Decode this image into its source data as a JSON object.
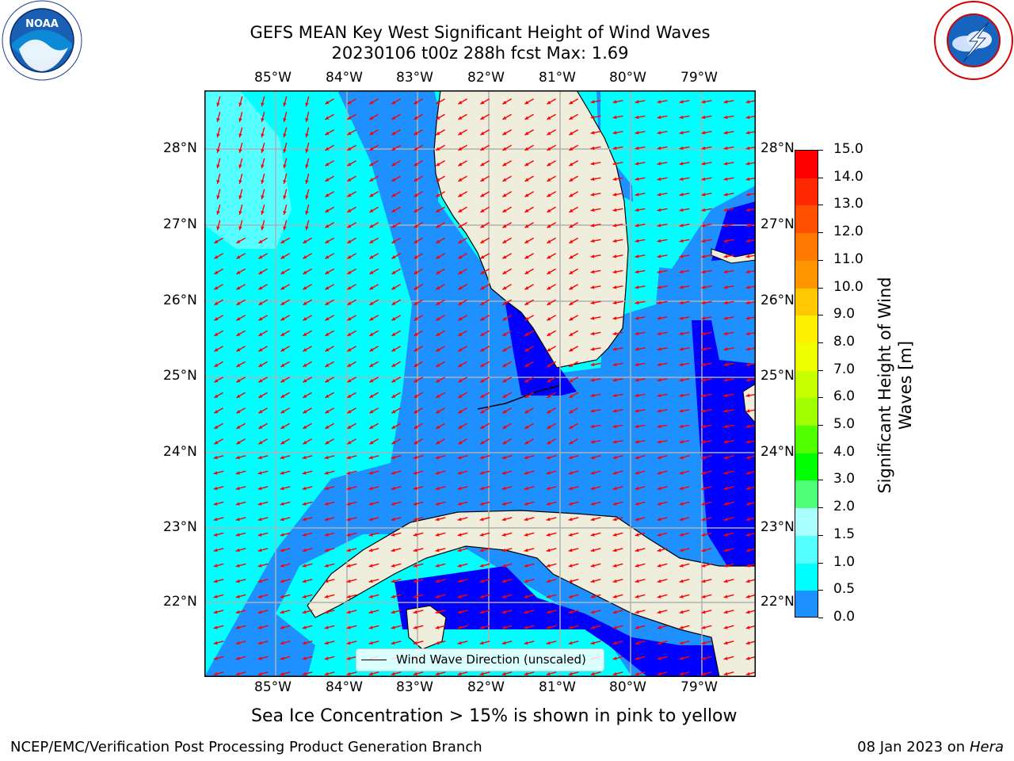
{
  "header": {
    "title_line1": "GEFS MEAN Key West Significant Height of Wind Waves",
    "title_line2": "20230106 t00z 288h fcst   Max: 1.69"
  },
  "logos": {
    "left": {
      "icon": "noaa-logo",
      "text": "NOAA",
      "ring_text": "NATIONAL OCEANIC AND ATMOSPHERIC ADMINISTRATION · U.S. DEPARTMENT OF COMMERCE"
    },
    "right": {
      "icon": "nws-logo",
      "ring_text": "NATIONAL WEATHER SERVICE"
    }
  },
  "map": {
    "lon_ticks": [
      "85°W",
      "84°W",
      "83°W",
      "82°W",
      "81°W",
      "80°W",
      "79°W"
    ],
    "lat_ticks": [
      "28°N",
      "27°N",
      "26°N",
      "25°N",
      "24°N",
      "23°N",
      "22°N"
    ],
    "legend_label": "Wind Wave Direction (unscaled)",
    "land_color": "#efeedc",
    "arrow_color": "#ff0000"
  },
  "colorbar": {
    "label_line1": "Significant Height of Wind",
    "label_line2": "Waves [m]",
    "ticks": [
      "15.0",
      "14.0",
      "13.0",
      "12.0",
      "11.0",
      "10.0",
      "9.0",
      "8.0",
      "7.0",
      "6.0",
      "5.0",
      "4.0",
      "3.0",
      "2.0",
      "1.5",
      "1.0",
      "0.5",
      "0.0"
    ],
    "colors_top_to_bottom": [
      "#ff0000",
      "#ff2800",
      "#ff5000",
      "#ff7800",
      "#ff9600",
      "#ffc800",
      "#fff000",
      "#f0ff00",
      "#c8ff00",
      "#a0ff00",
      "#50ff00",
      "#00ff00",
      "#50ff78",
      "#aaffff",
      "#55ffff",
      "#00ffff",
      "#1e90ff",
      "#0000ff"
    ]
  },
  "subtitle": "Sea Ice Concentration > 15% is shown in pink to yellow",
  "footer": {
    "left": "NCEP/EMC/Verification Post Processing Product Generation Branch",
    "right_date": "08 Jan 2023 on ",
    "right_host": "Hera"
  }
}
